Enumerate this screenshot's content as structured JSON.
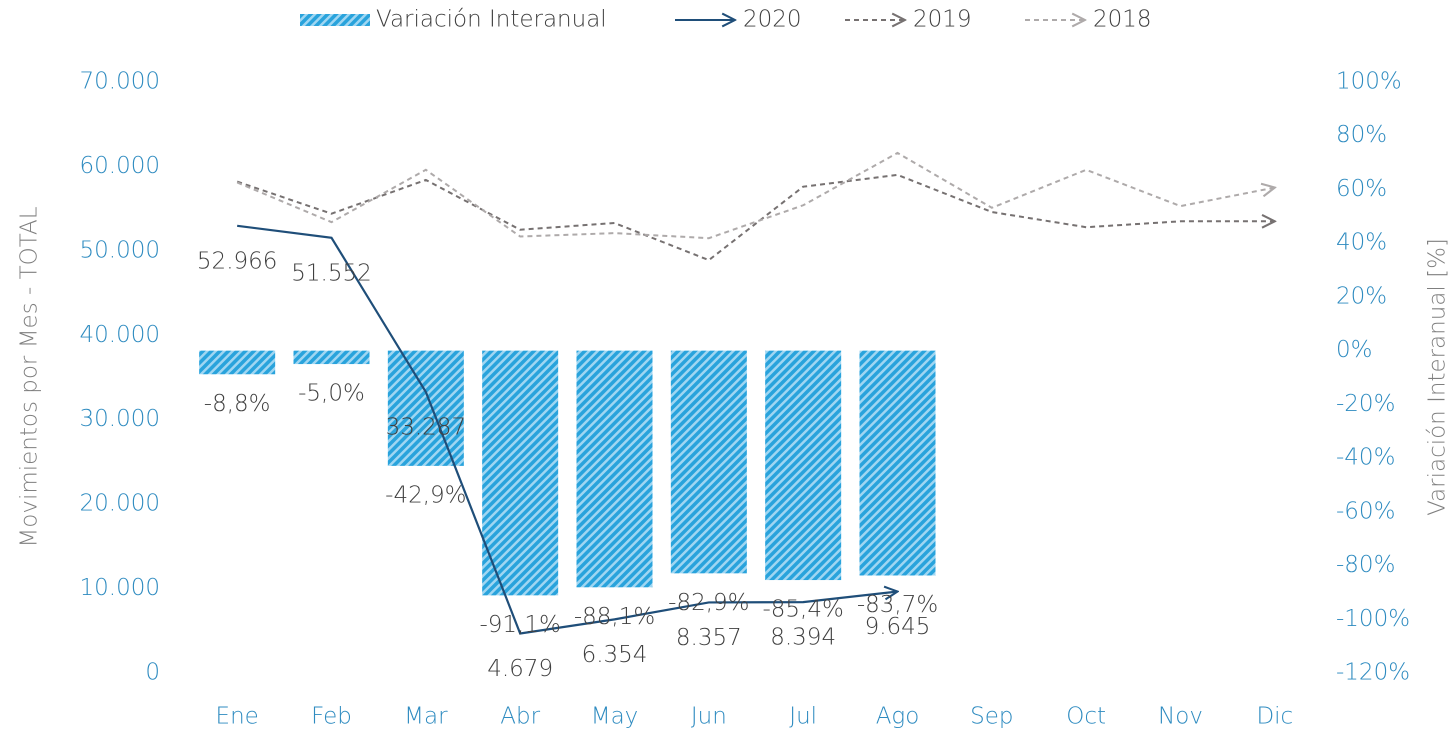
{
  "chart_data": {
    "type": "combo",
    "legend_position": "top",
    "categories": [
      "Ene",
      "Feb",
      "Mar",
      "Abr",
      "May",
      "Jun",
      "Jul",
      "Ago",
      "Sep",
      "Oct",
      "Nov",
      "Dic"
    ],
    "series": [
      {
        "name": "Variación Interanual",
        "type": "bar",
        "axis": "y2",
        "color": "#29a3dc",
        "values": [
          -8.8,
          -5.0,
          -42.9,
          -91.1,
          -88.1,
          -82.9,
          -85.4,
          -83.7,
          null,
          null,
          null,
          null
        ],
        "value_labels": [
          "-8,8%",
          "-5,0%",
          "-42,9%",
          "-91,1%",
          "-88,1%",
          "-82,9%",
          "-85,4%",
          "-83,7%",
          null,
          null,
          null,
          null
        ]
      },
      {
        "name": "2020",
        "type": "line",
        "style": "solid",
        "color": "#1f4e79",
        "values": [
          52966,
          51552,
          33287,
          4679,
          6354,
          8357,
          8394,
          9645,
          null,
          null,
          null,
          null
        ],
        "value_labels": [
          "52.966",
          "51.552",
          "33.287",
          "4.679",
          "6.354",
          "8.357",
          "8.394",
          "9.645",
          null,
          null,
          null,
          null
        ]
      },
      {
        "name": "2019",
        "type": "line",
        "style": "dashed",
        "color": "#767171",
        "values": [
          58200,
          54400,
          58400,
          52500,
          53300,
          48900,
          57600,
          59000,
          54600,
          52800,
          53500,
          53500
        ]
      },
      {
        "name": "2018",
        "type": "line",
        "style": "dashed",
        "color": "#aeaaaa",
        "values": [
          58100,
          53400,
          59600,
          51700,
          52100,
          51500,
          55400,
          61600,
          55100,
          59600,
          55300,
          57500
        ]
      }
    ],
    "ylabel": "Movimientos por Mes - TOTAL",
    "y2label": "Variación Interanual [%]",
    "ylim": [
      0,
      70000
    ],
    "yticks": [
      0,
      {
        "value": 10000,
        "label": "10.000"
      },
      {
        "value": 20000,
        "label": "20.000"
      },
      {
        "value": 30000,
        "label": "30.000"
      },
      {
        "value": 40000,
        "label": "40.000"
      },
      {
        "value": 50000,
        "label": "50.000"
      },
      {
        "value": 60000,
        "label": "60.000"
      },
      {
        "value": 70000,
        "label": "70.000"
      }
    ],
    "y2lim": [
      -120,
      100
    ],
    "y2ticks": [
      {
        "value": -120,
        "label": "-120%"
      },
      {
        "value": -100,
        "label": "-100%"
      },
      {
        "value": -80,
        "label": "-80%"
      },
      {
        "value": -60,
        "label": "-60%"
      },
      {
        "value": -40,
        "label": "-40%"
      },
      {
        "value": -20,
        "label": "-20%"
      },
      {
        "value": 0,
        "label": "0%"
      },
      {
        "value": 20,
        "label": "20%"
      },
      {
        "value": 40,
        "label": "40%"
      },
      {
        "value": 60,
        "label": "60%"
      },
      {
        "value": 80,
        "label": "80%"
      },
      {
        "value": 100,
        "label": "100%"
      }
    ]
  }
}
